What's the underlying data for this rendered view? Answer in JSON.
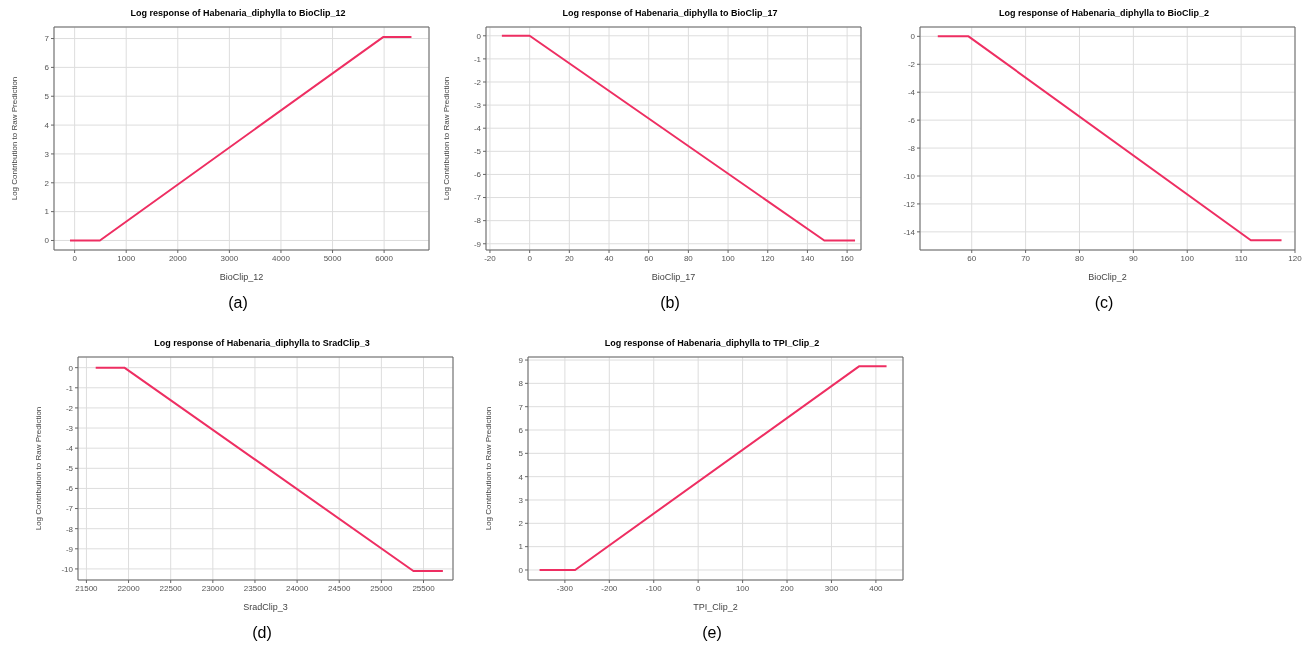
{
  "chart_data": [
    {
      "type": "line",
      "title": "Log response of Habenaria_diphylla to BioClip_12",
      "xlabel": "BioClip_12",
      "ylabel": "Log Contribution to Raw Prediction",
      "x": [
        -90,
        490,
        5980,
        6530
      ],
      "values": [
        0,
        0,
        7.05,
        7.05
      ],
      "color": "#ee2e62",
      "xlim": [
        -400,
        6870
      ],
      "xticks": [
        0,
        1000,
        2000,
        3000,
        4000,
        5000,
        6000
      ],
      "ylim": [
        -0.33,
        7.4
      ],
      "yticks": [
        0,
        1,
        2,
        3,
        4,
        5,
        6,
        7
      ],
      "grid": true,
      "annotations": [
        "(a)"
      ]
    },
    {
      "type": "line",
      "title": "Log response of Habenaria_diphylla to BioClip_17",
      "xlabel": "BioClip_17",
      "ylabel": "Log Contribution to Raw Prediction",
      "x": [
        -14,
        0,
        148.5,
        164
      ],
      "values": [
        0,
        0,
        -8.86,
        -8.86
      ],
      "color": "#ee2e62",
      "xlim": [
        -22,
        167
      ],
      "xticks": [
        -20,
        0,
        20,
        40,
        60,
        80,
        100,
        120,
        140,
        160
      ],
      "ylim": [
        -9.27,
        0.38
      ],
      "yticks": [
        0,
        -1,
        -2,
        -3,
        -4,
        -5,
        -6,
        -7,
        -8,
        -9
      ],
      "grid": true,
      "annotations": [
        "(b)"
      ]
    },
    {
      "type": "line",
      "title": "Log response of Habenaria_diphylla to BioClip_2",
      "xlabel": "BioClip_2",
      "x": [
        53.7,
        59.4,
        111.8,
        117.5
      ],
      "values": [
        0,
        0,
        -14.6,
        -14.6
      ],
      "color": "#ee2e62",
      "xlim": [
        50.4,
        120
      ],
      "xticks": [
        60,
        70,
        80,
        90,
        100,
        110,
        120
      ],
      "ylim": [
        -15.3,
        0.67
      ],
      "yticks": [
        0,
        -2,
        -4,
        -6,
        -8,
        -10,
        -12,
        -14
      ],
      "grid": true,
      "annotations": [
        "(c)"
      ]
    },
    {
      "type": "line",
      "title": "Log response of Habenaria_diphylla to SradClip_3",
      "xlabel": "SradClip_3",
      "ylabel": "Log Contribution to Raw Prediction",
      "x": [
        21610,
        21950,
        25380,
        25730
      ],
      "values": [
        0,
        0,
        -10.1,
        -10.1
      ],
      "color": "#ee2e62",
      "xlim": [
        21400,
        25850
      ],
      "xticks": [
        21500,
        22000,
        22500,
        23000,
        23500,
        24000,
        24500,
        25000,
        25500
      ],
      "ylim": [
        -10.55,
        0.53
      ],
      "yticks": [
        0,
        -1,
        -2,
        -3,
        -4,
        -5,
        -6,
        -7,
        -8,
        -9,
        -10
      ],
      "grid": true,
      "annotations": [
        "(d)"
      ]
    },
    {
      "type": "line",
      "title": "Log response of Habenaria_diphylla to TPI_Clip_2",
      "xlabel": "TPI_Clip_2",
      "ylabel": "Log Contribution to Raw Prediction",
      "x": [
        -357,
        -277,
        362,
        424
      ],
      "values": [
        0,
        0,
        8.73,
        8.73
      ],
      "color": "#ee2e62",
      "xlim": [
        -383,
        461
      ],
      "xticks": [
        -300,
        -200,
        -100,
        0,
        100,
        200,
        300,
        400
      ],
      "ylim": [
        -0.43,
        9.13
      ],
      "yticks": [
        0,
        1,
        2,
        3,
        4,
        5,
        6,
        7,
        8,
        9
      ],
      "grid": true,
      "annotations": [
        "(e)"
      ]
    }
  ]
}
